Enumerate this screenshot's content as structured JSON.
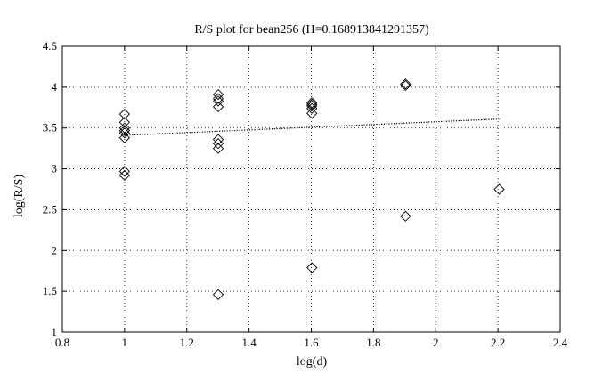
{
  "chart_data": {
    "type": "scatter",
    "title": "R/S plot for bean256 (H=0.168913841291357)",
    "xlabel": "log(d)",
    "ylabel": "log(R/S)",
    "xlim": [
      0.8,
      2.4
    ],
    "ylim": [
      1,
      4.5
    ],
    "x_ticks": [
      0.8,
      1,
      1.2,
      1.4,
      1.6,
      1.8,
      2,
      2.2,
      2.4
    ],
    "x_tick_labels": [
      "0.8",
      "1",
      "1.2",
      "1.4",
      "1.6",
      "1.8",
      "2",
      "2.2",
      "2.4"
    ],
    "y_ticks": [
      1,
      1.5,
      2,
      2.5,
      3,
      3.5,
      4,
      4.5
    ],
    "y_tick_labels": [
      "1",
      "1.5",
      "2",
      "2.5",
      "3",
      "3.5",
      "4",
      "4.5"
    ],
    "grid": true,
    "series": [
      {
        "marker": "diamond",
        "points": [
          {
            "x": 1.0,
            "y": 3.67
          },
          {
            "x": 1.0,
            "y": 3.57
          },
          {
            "x": 1.0,
            "y": 3.5
          },
          {
            "x": 1.0,
            "y": 3.47
          },
          {
            "x": 1.0,
            "y": 3.44
          },
          {
            "x": 1.0,
            "y": 3.38
          },
          {
            "x": 1.0,
            "y": 2.97
          },
          {
            "x": 1.0,
            "y": 2.92
          },
          {
            "x": 1.301,
            "y": 3.91
          },
          {
            "x": 1.301,
            "y": 3.86
          },
          {
            "x": 1.301,
            "y": 3.83
          },
          {
            "x": 1.301,
            "y": 3.76
          },
          {
            "x": 1.301,
            "y": 3.36
          },
          {
            "x": 1.301,
            "y": 3.31
          },
          {
            "x": 1.301,
            "y": 3.25
          },
          {
            "x": 1.301,
            "y": 1.46
          },
          {
            "x": 1.602,
            "y": 3.81
          },
          {
            "x": 1.602,
            "y": 3.79
          },
          {
            "x": 1.602,
            "y": 3.77
          },
          {
            "x": 1.602,
            "y": 3.74
          },
          {
            "x": 1.602,
            "y": 3.68
          },
          {
            "x": 1.602,
            "y": 1.79
          },
          {
            "x": 1.903,
            "y": 4.04
          },
          {
            "x": 1.903,
            "y": 4.02
          },
          {
            "x": 1.903,
            "y": 2.42
          },
          {
            "x": 2.204,
            "y": 2.75
          }
        ]
      },
      {
        "style": "dotted-line",
        "points": [
          {
            "x": 1.0,
            "y": 3.41
          },
          {
            "x": 2.204,
            "y": 3.61
          }
        ]
      }
    ]
  }
}
